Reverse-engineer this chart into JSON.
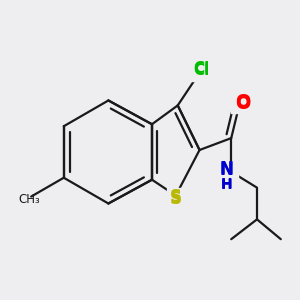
{
  "background_color": "#eeeef0",
  "bond_color": "#1a1a1a",
  "bond_lw": 1.6,
  "figsize": [
    3.0,
    3.0
  ],
  "dpi": 100,
  "atoms": {
    "S": {
      "color": "#b8b800",
      "fontsize": 12
    },
    "Cl": {
      "color": "#00bb00",
      "fontsize": 11
    },
    "O": {
      "color": "#ff0000",
      "fontsize": 13
    },
    "N": {
      "color": "#0000cc",
      "fontsize": 12
    },
    "H": {
      "color": "#0000cc",
      "fontsize": 10
    }
  }
}
